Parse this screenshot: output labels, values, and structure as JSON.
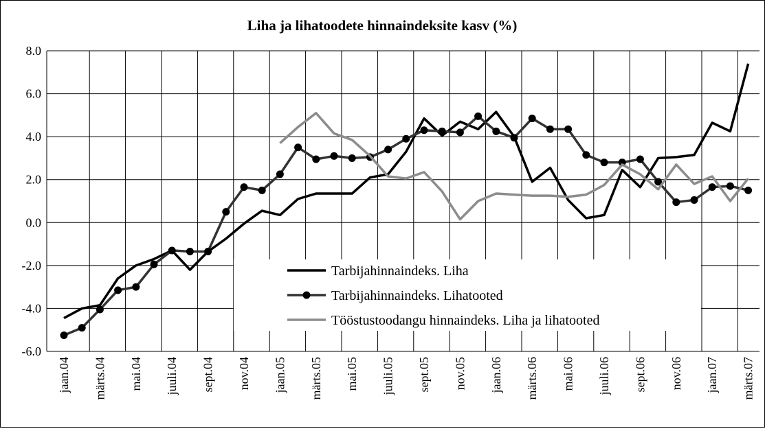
{
  "chart_data": {
    "type": "line",
    "title": "Liha ja lihatoodete hinnaindeksite kasv (%)",
    "categories": [
      "jaan.04",
      null,
      "märts.04",
      null,
      "mai.04",
      null,
      "juuli.04",
      null,
      "sept.04",
      null,
      "nov.04",
      null,
      "jaan.05",
      null,
      "märts.05",
      null,
      "mai.05",
      null,
      "juuli.05",
      null,
      "sept.05",
      null,
      "nov.05",
      null,
      "jaan.06",
      null,
      "märts.06",
      null,
      "mai.06",
      null,
      "juuli.06",
      null,
      "sept.06",
      null,
      "nov.06",
      null,
      "jaan.07",
      null,
      "märts.07"
    ],
    "series": [
      {
        "name": "Tarbijahinnaindeks. Liha",
        "color": "#000000",
        "marker": false,
        "values": [
          -4.45,
          -4.0,
          -3.85,
          -2.6,
          -2.0,
          -1.7,
          -1.3,
          -2.2,
          -1.35,
          -0.75,
          -0.05,
          0.55,
          0.35,
          1.1,
          1.35,
          1.35,
          1.35,
          2.1,
          2.25,
          3.3,
          4.85,
          4.05,
          4.7,
          4.35,
          5.15,
          4.0,
          1.9,
          2.55,
          1.05,
          0.2,
          0.35,
          2.45,
          1.65,
          3.0,
          3.05,
          3.15,
          4.65,
          4.25,
          7.4
        ]
      },
      {
        "name": "Tarbijahinnaindeks. Lihatooted",
        "color": "#333333",
        "marker": true,
        "values": [
          -5.25,
          -4.9,
          -4.05,
          -3.15,
          -3.0,
          -1.95,
          -1.3,
          -1.35,
          -1.35,
          0.5,
          1.65,
          1.5,
          2.25,
          3.5,
          2.95,
          3.1,
          3.0,
          3.05,
          3.4,
          3.9,
          4.3,
          4.25,
          4.2,
          4.95,
          4.25,
          3.95,
          4.85,
          4.35,
          4.35,
          3.15,
          2.8,
          2.8,
          2.95,
          1.9,
          0.95,
          1.05,
          1.65,
          1.7,
          1.5
        ]
      },
      {
        "name": "Tööstustoodangu hinnaindeks. Liha ja lihatooted",
        "color": "#8c8c8c",
        "marker": false,
        "values": [
          null,
          null,
          null,
          null,
          null,
          null,
          null,
          null,
          null,
          null,
          null,
          null,
          3.7,
          4.45,
          5.1,
          4.15,
          3.85,
          3.1,
          2.15,
          2.05,
          2.35,
          1.45,
          0.15,
          1.0,
          1.35,
          1.3,
          1.25,
          1.25,
          1.2,
          1.3,
          1.75,
          2.7,
          2.25,
          1.55,
          2.7,
          1.8,
          2.15,
          1.0,
          2.05
        ]
      }
    ],
    "ylim": [
      -6,
      8
    ],
    "yticks": [
      {
        "value": -6,
        "label": "-6.0"
      },
      {
        "value": -4,
        "label": "-4.0"
      },
      {
        "value": -2,
        "label": "-2.0"
      },
      {
        "value": 0,
        "label": "0.0"
      },
      {
        "value": 2,
        "label": "2.0"
      },
      {
        "value": 4,
        "label": "4.0"
      },
      {
        "value": 6,
        "label": "6.0"
      },
      {
        "value": 8,
        "label": "8.0"
      }
    ],
    "grid": true
  }
}
